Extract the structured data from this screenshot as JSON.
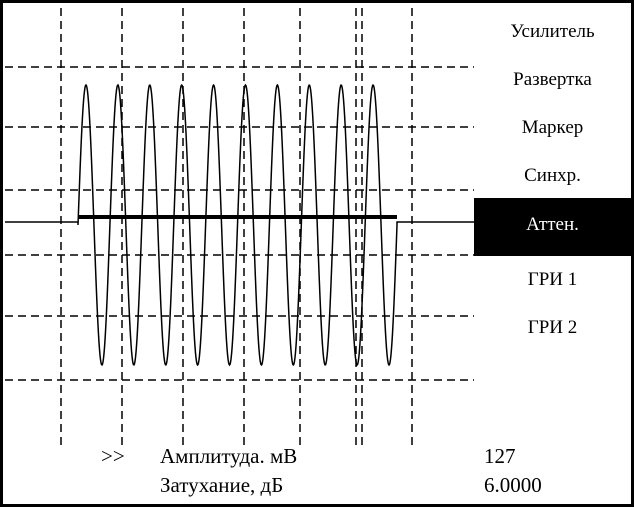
{
  "menu": {
    "items": [
      {
        "label": "Усилитель",
        "selected": false
      },
      {
        "label": "Развертка",
        "selected": false
      },
      {
        "label": "Маркер",
        "selected": false
      },
      {
        "label": "Синхр.",
        "selected": false
      },
      {
        "label": "Аттен.",
        "selected": true
      },
      {
        "label": "ГРИ 1",
        "selected": false
      },
      {
        "label": "ГРИ 2",
        "selected": false
      }
    ]
  },
  "readout": {
    "cursor": ">>",
    "amplitude": {
      "label": "Амплитуда. мВ",
      "value": "127"
    },
    "attenuation": {
      "label": "Затухание, дБ",
      "value": "6.0000"
    }
  },
  "colors": {
    "foreground": "#000000",
    "background": "#ffffff",
    "selected_bg": "#000000",
    "selected_fg": "#ffffff"
  }
}
